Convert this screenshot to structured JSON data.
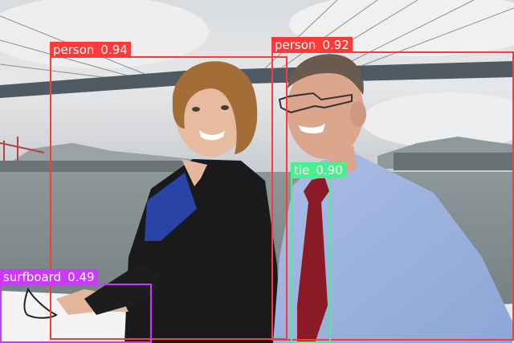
{
  "detections": [
    {
      "label": "person",
      "score": "0.94",
      "color": "#ff3838"
    },
    {
      "label": "person",
      "score": "0.92",
      "color": "#ff3838"
    },
    {
      "label": "tie",
      "score": "0.90",
      "color": "#48f090"
    },
    {
      "label": "surfboard",
      "score": "0.49",
      "color": "#cb38ff"
    }
  ]
}
